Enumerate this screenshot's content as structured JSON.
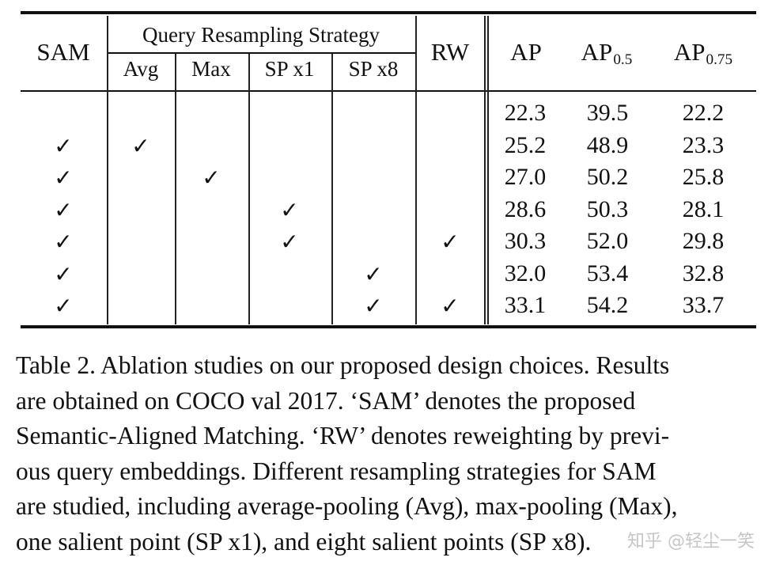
{
  "table": {
    "headers": {
      "sam": "SAM",
      "group": "Query Resampling Strategy",
      "sub": [
        "Avg",
        "Max",
        "SP x1",
        "SP x8"
      ],
      "rw": "RW",
      "ap": "AP",
      "ap50_base": "AP",
      "ap50_sub": "0.5",
      "ap75_base": "AP",
      "ap75_sub": "0.75"
    },
    "check_symbol": "✓",
    "rows": [
      {
        "sam": false,
        "avg": false,
        "max": false,
        "sp1": false,
        "sp8": false,
        "rw": false,
        "ap": "22.3",
        "ap50": "39.5",
        "ap75": "22.2"
      },
      {
        "sam": true,
        "avg": true,
        "max": false,
        "sp1": false,
        "sp8": false,
        "rw": false,
        "ap": "25.2",
        "ap50": "48.9",
        "ap75": "23.3"
      },
      {
        "sam": true,
        "avg": false,
        "max": true,
        "sp1": false,
        "sp8": false,
        "rw": false,
        "ap": "27.0",
        "ap50": "50.2",
        "ap75": "25.8"
      },
      {
        "sam": true,
        "avg": false,
        "max": false,
        "sp1": true,
        "sp8": false,
        "rw": false,
        "ap": "28.6",
        "ap50": "50.3",
        "ap75": "28.1"
      },
      {
        "sam": true,
        "avg": false,
        "max": false,
        "sp1": true,
        "sp8": false,
        "rw": true,
        "ap": "30.3",
        "ap50": "52.0",
        "ap75": "29.8"
      },
      {
        "sam": true,
        "avg": false,
        "max": false,
        "sp1": false,
        "sp8": true,
        "rw": false,
        "ap": "32.0",
        "ap50": "53.4",
        "ap75": "32.8"
      },
      {
        "sam": true,
        "avg": false,
        "max": false,
        "sp1": false,
        "sp8": true,
        "rw": true,
        "ap": "33.1",
        "ap50": "54.2",
        "ap75": "33.7"
      }
    ]
  },
  "caption": {
    "lines": [
      "Table 2. Ablation studies on our proposed design choices. Results",
      "are obtained on COCO val 2017.  ‘SAM’ denotes the proposed",
      "Semantic-Aligned Matching. ‘RW’ denotes reweighting by previ-",
      "ous query embeddings. Different resampling strategies for SAM",
      "are studied, including average-pooling (Avg), max-pooling (Max),",
      "one salient point (SP x1), and eight salient points (SP x8)."
    ]
  },
  "watermark": "知乎 @轻尘一笑"
}
